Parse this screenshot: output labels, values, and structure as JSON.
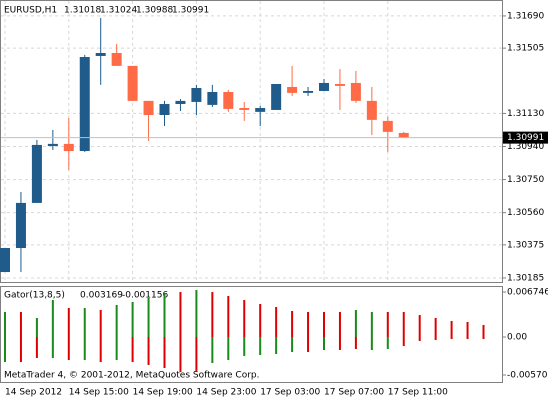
{
  "chart_data": [
    {
      "type": "candlestick",
      "symbol": "EURUSD,H1",
      "categories": [
        "14 Sep 2012",
        null,
        null,
        null,
        "14 Sep 15:00",
        null,
        null,
        null,
        "14 Sep 19:00",
        null,
        null,
        null,
        "14 Sep 23:00",
        null,
        null,
        null,
        "17 Sep 03:00",
        null,
        null,
        null,
        "17 Sep 07:00",
        null,
        null,
        null,
        "17 Sep 11:00",
        null
      ],
      "open": [
        1.30219,
        1.30357,
        1.30616,
        1.30943,
        1.30955,
        1.30914,
        1.3146,
        1.31477,
        1.31403,
        1.31202,
        1.31121,
        1.31184,
        1.31196,
        1.31179,
        1.31253,
        1.31161,
        1.31139,
        1.3115,
        1.31282,
        1.31248,
        1.31259,
        1.31299,
        1.31305,
        1.31202,
        1.31087,
        1.31018
      ],
      "high": [
        1.30357,
        1.30679,
        1.30978,
        1.31035,
        1.31104,
        1.31466,
        1.31678,
        1.31529,
        1.31403,
        1.31202,
        1.31202,
        1.31213,
        1.31294,
        1.31294,
        1.31265,
        1.31196,
        1.31173,
        1.31299,
        1.31403,
        1.31282,
        1.31328,
        1.31385,
        1.31374,
        1.31282,
        1.3111,
        1.31024
      ],
      "low": [
        1.30219,
        1.30219,
        1.30616,
        1.3092,
        1.30805,
        1.30909,
        1.31294,
        1.31403,
        1.31202,
        1.30972,
        1.31058,
        1.31144,
        1.31121,
        1.31167,
        1.31139,
        1.31087,
        1.31058,
        1.3115,
        1.3123,
        1.3123,
        1.31259,
        1.3115,
        1.3119,
        1.31006,
        1.30909,
        1.30988
      ],
      "close": [
        1.30357,
        1.30616,
        1.30949,
        1.30955,
        1.30914,
        1.31454,
        1.31477,
        1.31403,
        1.31202,
        1.31121,
        1.31184,
        1.31202,
        1.31276,
        1.31253,
        1.31156,
        1.3115,
        1.31161,
        1.31299,
        1.31248,
        1.31259,
        1.31305,
        1.31288,
        1.31202,
        1.31093,
        1.31024,
        1.30991
      ],
      "bull_color": "#1f5b8b",
      "bear_color": "#ff6a47",
      "ylim": [
        1.30156,
        1.3177
      ],
      "yticks": [
        {
          "value": 1.3169,
          "label": "1.31690"
        },
        1.31505,
        {
          "value": 1.3113,
          "label": "1.31130"
        },
        {
          "value": 1.3094,
          "label": "1.30940"
        },
        {
          "value": 1.3075,
          "label": "1.30750"
        },
        {
          "value": 1.3056,
          "label": "1.30560"
        },
        1.30375,
        1.30185
      ],
      "grid": true
    },
    {
      "type": "gator",
      "title": "Gator(13,8,5)",
      "readout": [
        0.003169,
        -0.001156
      ],
      "upper": {
        "values": [
          0.00375,
          0.00375,
          0.00285,
          0.00555,
          0.00435,
          0.00435,
          0.00405,
          0.0048,
          0.00525,
          0.00585,
          0.00645,
          0.00675,
          0.00705,
          0.00675,
          0.00615,
          0.00555,
          0.00495,
          0.0045,
          0.0039,
          0.00375,
          0.00375,
          0.00375,
          0.00405,
          0.00375,
          0.00375,
          0.00375,
          0.0033,
          0.00285,
          0.0024,
          0.00225,
          0.0018
        ],
        "colors": [
          "#1a8a1a",
          "#e00000",
          "#1a8a1a",
          "#1a8a1a",
          "#e00000",
          "#1a8a1a",
          "#e00000",
          "#1a8a1a",
          "#1a8a1a",
          "#1a8a1a",
          "#1a8a1a",
          "#e00000",
          "#1a8a1a",
          "#e00000",
          "#e00000",
          "#e00000",
          "#e00000",
          "#e00000",
          "#e00000",
          "#e00000",
          "#e00000",
          "#e00000",
          "#1a8a1a",
          "#1a8a1a",
          "#e00000",
          "#e00000",
          "#e00000",
          "#e00000",
          "#e00000",
          "#e00000",
          "#e00000"
        ]
      },
      "lower": {
        "values": [
          -0.00375,
          -0.00375,
          -0.00315,
          -0.00315,
          -0.00345,
          -0.00345,
          -0.00375,
          -0.00345,
          -0.00375,
          -0.0042,
          -0.00465,
          -0.00525,
          -0.00525,
          -0.0039,
          -0.00345,
          -0.00285,
          -0.0027,
          -0.00255,
          -0.00225,
          -0.00225,
          -0.00195,
          -0.00195,
          -0.0018,
          -0.00195,
          -0.0018,
          -0.00135,
          -0.0006,
          -0.00045,
          -0.0003,
          -0.0003,
          -0.0003
        ],
        "colors": [
          "#1a8a1a",
          "#e00000",
          "#e00000",
          "#1a8a1a",
          "#e00000",
          "#1a8a1a",
          "#e00000",
          "#1a8a1a",
          "#e00000",
          "#e00000",
          "#e00000",
          "#e00000",
          "#e00000",
          "#1a8a1a",
          "#1a8a1a",
          "#1a8a1a",
          "#1a8a1a",
          "#1a8a1a",
          "#1a8a1a",
          "#e00000",
          "#1a8a1a",
          "#e00000",
          "#e00000",
          "#1a8a1a",
          "#1a8a1a",
          "#e00000",
          "#e00000",
          "#e00000",
          "#e00000",
          "#e00000",
          "#e00000"
        ]
      },
      "ylim": [
        -0.0069,
        0.00765
      ],
      "yticks": [
        0.006746,
        {
          "value": 0,
          "label": "0.00"
        },
        {
          "value": -0.0057,
          "label": "-0.00570"
        }
      ],
      "watermark": "MetaTrader 4, © 2001-2012, MetaQuotes Software Corp."
    }
  ]
}
